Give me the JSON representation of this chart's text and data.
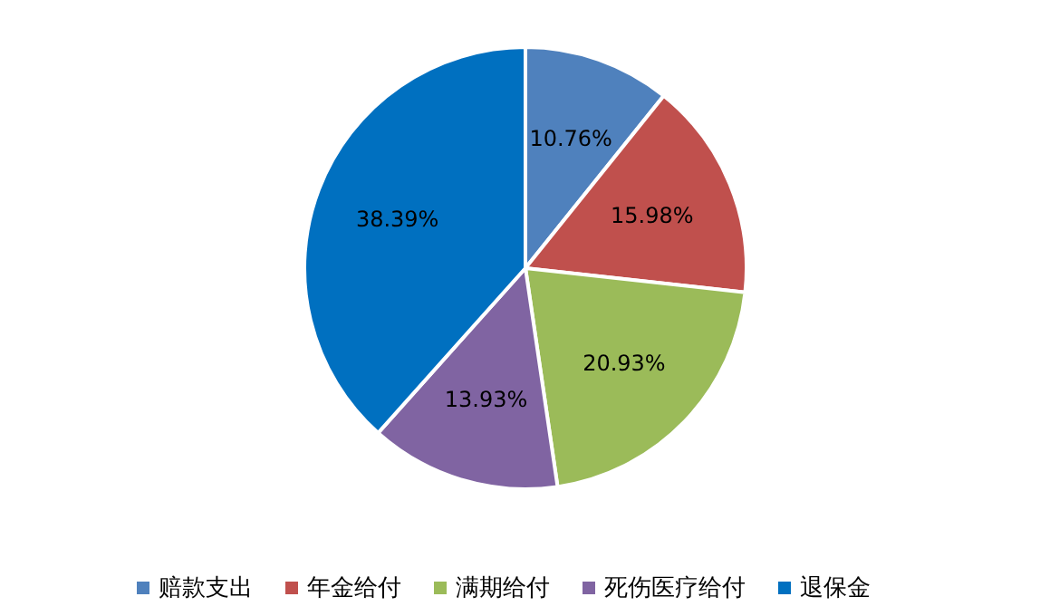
{
  "chart_data": {
    "type": "pie",
    "categories": [
      "赔款支出",
      "年金给付",
      "满期给付",
      "死伤医疗给付",
      "退保金"
    ],
    "values": [
      10.76,
      15.98,
      20.93,
      13.93,
      38.39
    ],
    "value_labels": [
      "10.76%",
      "15.98%",
      "20.93%",
      "13.93%",
      "38.39%"
    ],
    "colors": [
      "#4f81bd",
      "#c0504d",
      "#9bbb59",
      "#8064a2",
      "#0070c0"
    ],
    "legend": "bottom"
  }
}
